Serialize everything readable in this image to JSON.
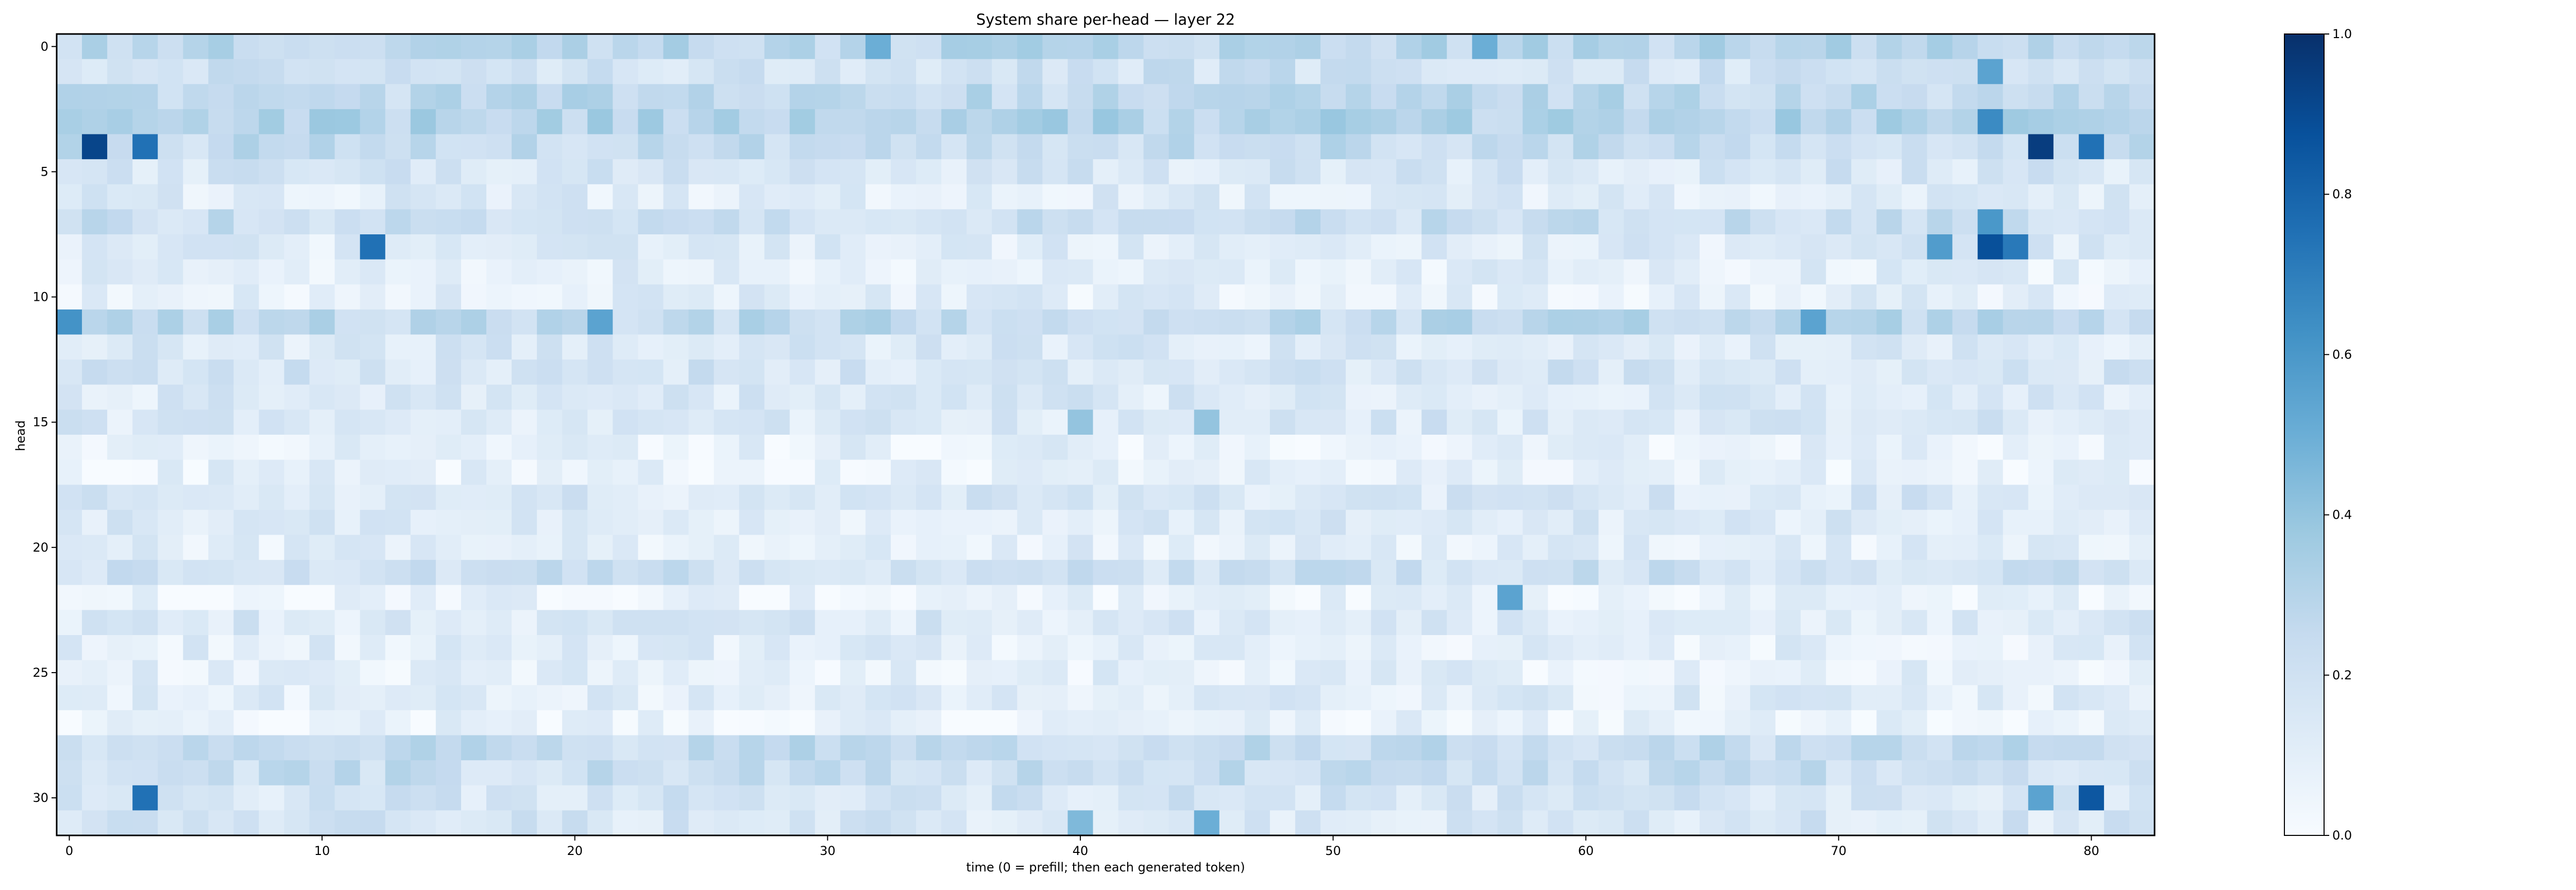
{
  "chart_data": {
    "type": "heatmap",
    "title": "System share per-head — layer 22",
    "xlabel": "time (0 = prefill; then each generated token)",
    "ylabel": "head",
    "n_cols": 83,
    "n_rows": 32,
    "x_ticks": [
      0,
      10,
      20,
      30,
      40,
      50,
      60,
      70,
      80
    ],
    "y_ticks": [
      0,
      5,
      10,
      15,
      20,
      25,
      30
    ],
    "colorbar": {
      "ticks": [
        0.0,
        0.2,
        0.4,
        0.6,
        0.8,
        1.0
      ],
      "tick_labels": [
        "0.0",
        "0.2",
        "0.4",
        "0.6",
        "0.8",
        "1.0"
      ],
      "vmin": 0.0,
      "vmax": 1.0
    },
    "colormap": "Blues",
    "row_base": [
      0.28,
      0.2,
      0.26,
      0.3,
      0.24,
      0.16,
      0.12,
      0.22,
      0.12,
      0.1,
      0.1,
      0.26,
      0.14,
      0.17,
      0.14,
      0.15,
      0.08,
      0.08,
      0.15,
      0.13,
      0.1,
      0.2,
      0.06,
      0.14,
      0.1,
      0.09,
      0.11,
      0.06,
      0.24,
      0.22,
      0.17,
      0.16
    ],
    "highlights": [
      {
        "head": 4,
        "t": 1,
        "value": 0.92
      },
      {
        "head": 4,
        "t": 3,
        "value": 0.75
      },
      {
        "head": 4,
        "t": 78,
        "value": 0.95
      },
      {
        "head": 4,
        "t": 80,
        "value": 0.75
      },
      {
        "head": 3,
        "t": 76,
        "value": 0.65
      },
      {
        "head": 7,
        "t": 76,
        "value": 0.6
      },
      {
        "head": 8,
        "t": 12,
        "value": 0.75
      },
      {
        "head": 8,
        "t": 76,
        "value": 0.88
      },
      {
        "head": 8,
        "t": 77,
        "value": 0.72
      },
      {
        "head": 8,
        "t": 74,
        "value": 0.58
      },
      {
        "head": 0,
        "t": 32,
        "value": 0.5
      },
      {
        "head": 0,
        "t": 56,
        "value": 0.5
      },
      {
        "head": 1,
        "t": 76,
        "value": 0.55
      },
      {
        "head": 11,
        "t": 0,
        "value": 0.62
      },
      {
        "head": 11,
        "t": 21,
        "value": 0.55
      },
      {
        "head": 11,
        "t": 69,
        "value": 0.55
      },
      {
        "head": 22,
        "t": 57,
        "value": 0.55
      },
      {
        "head": 30,
        "t": 3,
        "value": 0.75
      },
      {
        "head": 30,
        "t": 80,
        "value": 0.85
      },
      {
        "head": 30,
        "t": 78,
        "value": 0.55
      },
      {
        "head": 32,
        "t": 40,
        "value": 0.45
      },
      {
        "head": 32,
        "t": 45,
        "value": 0.5
      },
      {
        "head": 15,
        "t": 40,
        "value": 0.4
      },
      {
        "head": 15,
        "t": 45,
        "value": 0.4
      }
    ]
  }
}
